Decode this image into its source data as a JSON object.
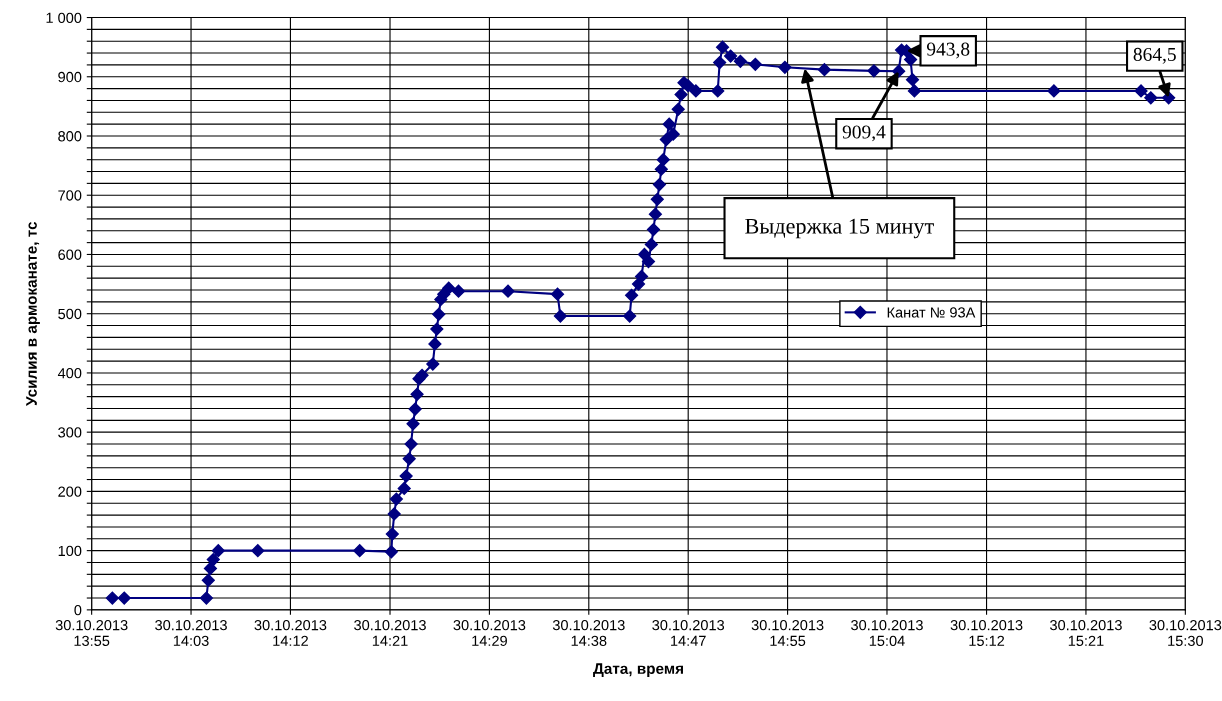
{
  "chart_data": {
    "type": "line",
    "xlabel": "Дата, время",
    "ylabel": "Усилия в армоканате, тс",
    "xlim": [
      "2013-10-30T13:55",
      "2013-10-30T15:30"
    ],
    "xticks": [
      {
        "value": "2013-10-30T13:55:00",
        "label": "30.10.2013\n13:55"
      },
      {
        "value": "2013-10-30T14:03:38",
        "label": "30.10.2013\n14:03"
      },
      {
        "value": "2013-10-30T14:12:16",
        "label": "30.10.2013\n14:12"
      },
      {
        "value": "2013-10-30T14:20:55",
        "label": "30.10.2013\n14:21"
      },
      {
        "value": "2013-10-30T14:29:33",
        "label": "30.10.2013\n14:29"
      },
      {
        "value": "2013-10-30T14:38:11",
        "label": "30.10.2013\n14:38"
      },
      {
        "value": "2013-10-30T14:46:49",
        "label": "30.10.2013\n14:47"
      },
      {
        "value": "2013-10-30T14:55:27",
        "label": "30.10.2013\n14:55"
      },
      {
        "value": "2013-10-30T15:04:05",
        "label": "30.10.2013\n15:04"
      },
      {
        "value": "2013-10-30T15:12:44",
        "label": "30.10.2013\n15:12"
      },
      {
        "value": "2013-10-30T15:21:22",
        "label": "30.10.2013\n15:21"
      },
      {
        "value": "2013-10-30T15:30:00",
        "label": "30.10.2013\n15:30"
      }
    ],
    "ylim": [
      0,
      1000
    ],
    "yticks": [
      0,
      {
        "value": 20,
        "label": null
      },
      {
        "value": 40,
        "label": null
      },
      {
        "value": 60,
        "label": null
      },
      {
        "value": 80,
        "label": null
      },
      100,
      {
        "value": 120,
        "label": null
      },
      {
        "value": 140,
        "label": null
      },
      {
        "value": 160,
        "label": null
      },
      {
        "value": 180,
        "label": null
      },
      200,
      {
        "value": 220,
        "label": null
      },
      {
        "value": 240,
        "label": null
      },
      {
        "value": 260,
        "label": null
      },
      {
        "value": 280,
        "label": null
      },
      300,
      {
        "value": 320,
        "label": null
      },
      {
        "value": 340,
        "label": null
      },
      {
        "value": 360,
        "label": null
      },
      {
        "value": 380,
        "label": null
      },
      400,
      {
        "value": 420,
        "label": null
      },
      {
        "value": 440,
        "label": null
      },
      {
        "value": 460,
        "label": null
      },
      {
        "value": 480,
        "label": null
      },
      500,
      {
        "value": 520,
        "label": null
      },
      {
        "value": 540,
        "label": null
      },
      {
        "value": 560,
        "label": null
      },
      {
        "value": 580,
        "label": null
      },
      600,
      {
        "value": 620,
        "label": null
      },
      {
        "value": 640,
        "label": null
      },
      {
        "value": 660,
        "label": null
      },
      {
        "value": 680,
        "label": null
      },
      700,
      {
        "value": 720,
        "label": null
      },
      {
        "value": 740,
        "label": null
      },
      {
        "value": 760,
        "label": null
      },
      {
        "value": 780,
        "label": null
      },
      800,
      {
        "value": 820,
        "label": null
      },
      {
        "value": 840,
        "label": null
      },
      {
        "value": 860,
        "label": null
      },
      {
        "value": 880,
        "label": null
      },
      900,
      {
        "value": 920,
        "label": null
      },
      {
        "value": 940,
        "label": null
      },
      {
        "value": 960,
        "label": null
      },
      {
        "value": 980,
        "label": null
      },
      {
        "value": 1000,
        "label": "1 000"
      }
    ],
    "grid": true,
    "legend": "right",
    "marker": "diamond",
    "line_style": "solid",
    "series": [
      {
        "name": "Канат № 93А",
        "color": "#000080",
        "x": [
          "2013-10-30T13:56:48",
          "2013-10-30T13:57:50",
          "2013-10-30T14:04:58",
          "2013-10-30T14:05:08",
          "2013-10-30T14:05:19",
          "2013-10-30T14:05:34",
          "2013-10-30T14:06:00",
          "2013-10-30T14:09:26",
          "2013-10-30T14:18:17",
          "2013-10-30T14:21:02",
          "2013-10-30T14:21:07",
          "2013-10-30T14:21:17",
          "2013-10-30T14:21:28",
          "2013-10-30T14:22:09",
          "2013-10-30T14:22:19",
          "2013-10-30T14:22:35",
          "2013-10-30T14:22:45",
          "2013-10-30T14:22:55",
          "2013-10-30T14:23:06",
          "2013-10-30T14:23:16",
          "2013-10-30T14:23:26",
          "2013-10-30T14:23:42",
          "2013-10-30T14:24:38",
          "2013-10-30T14:24:49",
          "2013-10-30T14:24:59",
          "2013-10-30T14:25:09",
          "2013-10-30T14:25:20",
          "2013-10-30T14:25:35",
          "2013-10-30T14:26:01",
          "2013-10-30T14:26:52",
          "2013-10-30T14:31:10",
          "2013-10-30T14:35:28",
          "2013-10-30T14:35:43",
          "2013-10-30T14:41:44",
          "2013-10-30T14:41:54",
          "2013-10-30T14:42:30",
          "2013-10-30T14:42:46",
          "2013-10-30T14:43:01",
          "2013-10-30T14:43:22",
          "2013-10-30T14:43:37",
          "2013-10-30T14:43:48",
          "2013-10-30T14:43:58",
          "2013-10-30T14:44:08",
          "2013-10-30T14:44:19",
          "2013-10-30T14:44:29",
          "2013-10-30T14:44:39",
          "2013-10-30T14:44:55",
          "2013-10-30T14:45:10",
          "2013-10-30T14:45:31",
          "2013-10-30T14:45:57",
          "2013-10-30T14:46:12",
          "2013-10-30T14:46:27",
          "2013-10-30T14:46:48",
          "2013-10-30T14:47:29",
          "2013-10-30T14:49:23",
          "2013-10-30T14:49:33",
          "2013-10-30T14:49:48",
          "2013-10-30T14:50:30",
          "2013-10-30T14:51:21",
          "2013-10-30T14:52:39",
          "2013-10-30T14:55:13",
          "2013-10-30T14:58:39",
          "2013-10-30T15:02:57",
          "2013-10-30T15:05:06",
          "2013-10-30T15:05:21",
          "2013-10-30T15:05:47",
          "2013-10-30T15:06:08",
          "2013-10-30T15:06:18",
          "2013-10-30T15:06:28",
          "2013-10-30T15:18:35",
          "2013-10-30T15:26:09",
          "2013-10-30T15:27:00",
          "2013-10-30T15:28:33"
        ],
        "values": [
          20,
          20,
          20,
          50,
          70,
          85,
          100,
          100,
          100,
          98,
          128,
          162,
          187,
          205,
          226,
          255,
          280,
          314,
          339,
          364,
          390,
          396,
          415,
          449,
          474,
          499,
          524,
          533,
          543,
          538,
          538,
          533,
          496,
          496,
          531,
          550,
          563,
          600,
          588,
          617,
          642,
          668,
          693,
          718,
          744,
          760,
          794,
          820,
          803,
          845,
          870,
          890,
          885,
          876,
          876,
          924,
          950,
          935,
          926,
          921,
          916,
          912,
          910,
          909.4,
          945,
          943.8,
          929,
          895,
          876,
          876,
          876,
          864.5,
          864.5
        ]
      }
    ],
    "annotations": [
      {
        "text": "909,4",
        "x": "2013-10-30T15:05:06",
        "y": 909.4
      },
      {
        "text": "943,8",
        "x": "2013-10-30T15:05:47",
        "y": 943.8
      },
      {
        "text": "864,5",
        "x": "2013-10-30T15:28:33",
        "y": 864.5
      },
      {
        "text": "Выдержка 15 минут",
        "x": "2013-10-30T14:56:56",
        "y": 914
      }
    ]
  }
}
